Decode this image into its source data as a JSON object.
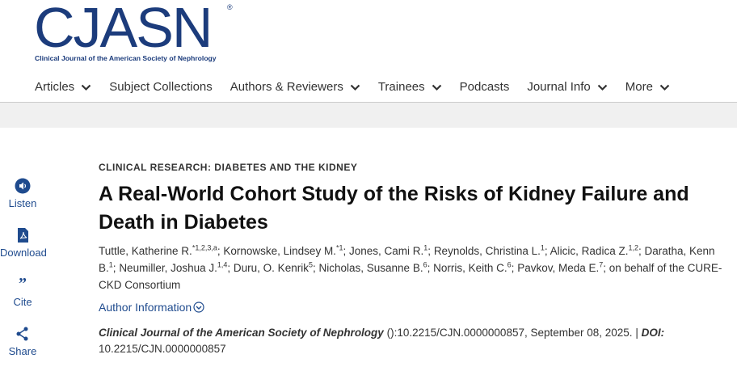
{
  "header": {
    "logo": "CJASN",
    "logo_mark": "®",
    "logo_subtitle": "Clinical Journal of the American Society of Nephrology",
    "nav": [
      {
        "label": "Articles",
        "dropdown": true
      },
      {
        "label": "Subject Collections",
        "dropdown": false
      },
      {
        "label": "Authors & Reviewers",
        "dropdown": true
      },
      {
        "label": "Trainees",
        "dropdown": true
      },
      {
        "label": "Podcasts",
        "dropdown": false
      },
      {
        "label": "Journal Info",
        "dropdown": true
      },
      {
        "label": "More",
        "dropdown": true
      }
    ]
  },
  "tools": [
    {
      "label": "Listen",
      "icon": "listen"
    },
    {
      "label": "Download",
      "icon": "pdf"
    },
    {
      "label": "Cite",
      "icon": "quote"
    },
    {
      "label": "Share",
      "icon": "share"
    }
  ],
  "article": {
    "category": "CLINICAL RESEARCH: DIABETES AND THE KIDNEY",
    "title": "A Real-World Cohort Study of the Risks of Kidney Failure and Death in Diabetes",
    "author_separator": ";",
    "authors": [
      {
        "name": "Tuttle, Katherine R.",
        "sup": "*1,2,3,a"
      },
      {
        "name": "Kornowske, Lindsey M.",
        "sup": "*1"
      },
      {
        "name": "Jones, Cami R.",
        "sup": "1"
      },
      {
        "name": "Reynolds, Christina L.",
        "sup": "1"
      },
      {
        "name": "Alicic, Radica Z.",
        "sup": "1,2"
      },
      {
        "name": "Daratha, Kenn B.",
        "sup": "1"
      },
      {
        "name": "Neumiller, Joshua J.",
        "sup": "1,4"
      },
      {
        "name": "Duru, O. Kenrik",
        "sup": "5"
      },
      {
        "name": "Nicholas, Susanne B.",
        "sup": "6"
      },
      {
        "name": "Norris, Keith C.",
        "sup": "6"
      },
      {
        "name": "Pavkov, Meda E.",
        "sup": "7"
      }
    ],
    "group": "on behalf of the CURE-CKD Consortium",
    "author_info": "Author Information",
    "citation": {
      "journal": "Clinical Journal of the American Society of Nephrology",
      "details": "():10.2215/CJN.0000000857, September 08, 2025.",
      "divider": "|",
      "doi_label": "DOI:",
      "doi": "10.2215/CJN.0000000857"
    }
  }
}
